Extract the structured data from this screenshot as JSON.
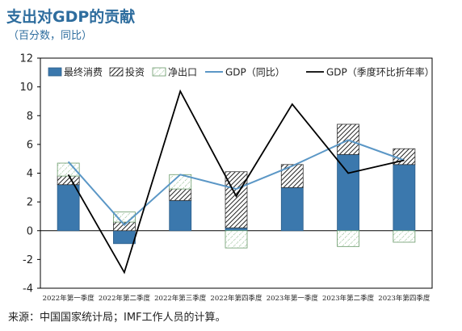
{
  "header": {
    "title": "支出对GDP的贡献",
    "subtitle": "（百分数，同比）"
  },
  "footer": {
    "source": "来源：中国国家统计局；IMF工作人员的计算。"
  },
  "colors": {
    "consumption": "#3b78ad",
    "investment_pattern": "#222222",
    "net_exports_pattern": "#7fb27f",
    "gdp_yoy": "#5b97c6",
    "gdp_qoq": "#000000",
    "title": "#2e6d9e"
  },
  "chart_data": {
    "type": "bar",
    "stacked": true,
    "categories": [
      "2022年第一季度",
      "2022年第二季度",
      "2022年第三季度",
      "2022年第四季度",
      "2023年第一季度",
      "2023年第二季度",
      "2023年第四季度"
    ],
    "series": [
      {
        "name": "最终消费",
        "kind": "bar",
        "pattern": "solid",
        "values": [
          3.2,
          -0.9,
          2.1,
          0.2,
          3.0,
          5.3,
          4.6
        ]
      },
      {
        "name": "投资",
        "kind": "bar",
        "pattern": "hatch",
        "values": [
          0.6,
          0.6,
          0.8,
          3.9,
          1.6,
          2.1,
          1.1
        ]
      },
      {
        "name": "净出口",
        "kind": "bar",
        "pattern": "dots",
        "values": [
          0.9,
          0.7,
          1.0,
          -1.2,
          0.0,
          -1.1,
          -0.8
        ]
      },
      {
        "name": "GDP（同比）",
        "kind": "line",
        "values": [
          4.8,
          0.4,
          3.9,
          2.9,
          4.5,
          6.3,
          4.9
        ]
      },
      {
        "name": "GDP（季度环比折年率）",
        "kind": "line",
        "values": [
          3.9,
          -2.9,
          9.7,
          2.4,
          8.8,
          4.0,
          4.9
        ]
      }
    ],
    "ylim": [
      -4,
      12
    ],
    "yticks": [
      -4,
      -2,
      0,
      2,
      4,
      6,
      8,
      10,
      12
    ],
    "xlabel": "",
    "ylabel": "",
    "legend_position": "top",
    "grid": false
  }
}
